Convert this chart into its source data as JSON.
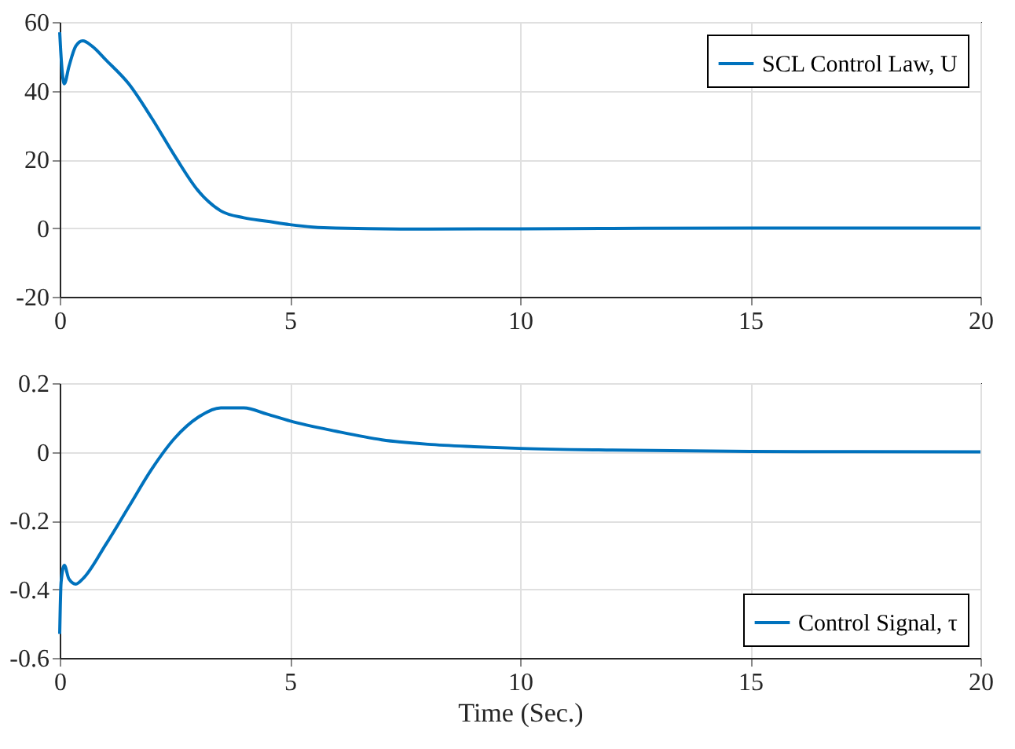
{
  "chart_data": [
    {
      "type": "line",
      "xlim": [
        0,
        20
      ],
      "xticks": [
        0,
        5,
        10,
        15,
        20
      ],
      "ylim": [
        -20,
        60
      ],
      "yticks": [
        -20,
        0,
        20,
        40,
        60
      ],
      "grid": true,
      "legend": "top right",
      "series": [
        {
          "name": "SCL Control Law, U",
          "color": "#0072bd",
          "x": [
            0,
            0.02,
            0.1,
            0.2,
            0.35,
            0.5,
            0.7,
            1,
            1.5,
            2,
            2.5,
            3,
            3.5,
            4,
            4.5,
            5,
            5.5,
            6,
            8,
            10,
            12,
            15,
            20
          ],
          "values": [
            57,
            52,
            42,
            47,
            53,
            54.5,
            53,
            49,
            42,
            32,
            21,
            11,
            5,
            3,
            2,
            1,
            0.3,
            0,
            -0.3,
            -0.2,
            -0.1,
            0,
            0
          ]
        }
      ]
    },
    {
      "type": "line",
      "xlim": [
        0,
        20
      ],
      "xticks": [
        0,
        5,
        10,
        15,
        20
      ],
      "ylim": [
        -0.6,
        0.2
      ],
      "yticks": [
        -0.6,
        -0.4,
        -0.2,
        0,
        0.2
      ],
      "grid": true,
      "legend": "bottom right",
      "xlabel": "Time (Sec.)",
      "series": [
        {
          "name": "Control Signal, τ",
          "color": "#0072bd",
          "x": [
            0,
            0.03,
            0.1,
            0.2,
            0.35,
            0.5,
            1,
            1.5,
            2,
            2.5,
            3,
            3.5,
            4,
            4.5,
            5,
            6,
            7,
            8,
            9,
            10,
            12,
            15,
            20
          ],
          "values": [
            -0.53,
            -0.38,
            -0.33,
            -0.37,
            -0.385,
            -0.37,
            -0.27,
            -0.16,
            -0.05,
            0.04,
            0.1,
            0.128,
            0.128,
            0.11,
            0.09,
            0.06,
            0.035,
            0.022,
            0.015,
            0.01,
            0.005,
            0.001,
            0
          ]
        }
      ]
    }
  ]
}
